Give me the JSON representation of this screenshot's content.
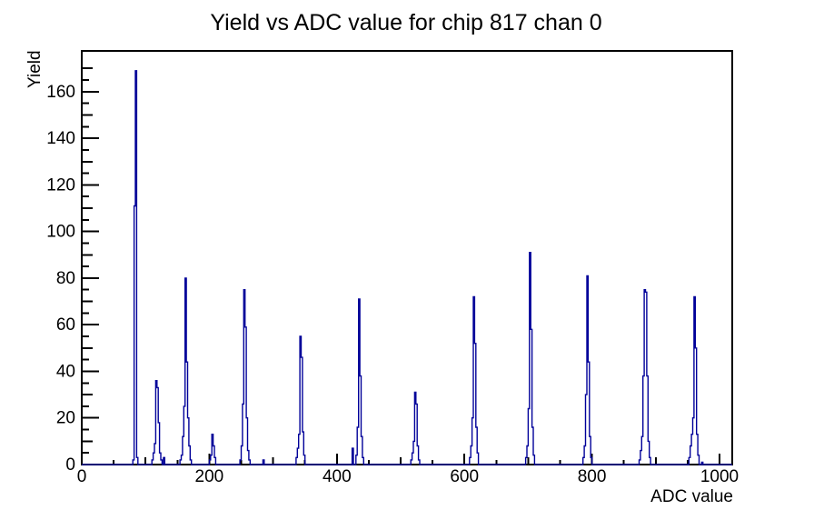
{
  "chart_data": {
    "type": "line",
    "subtype": "step-histogram",
    "title": "Yield vs ADC value for chip 817 chan 0",
    "xlabel": "ADC value",
    "ylabel": "Yield",
    "xlim": [
      0,
      1020
    ],
    "ylim": [
      0,
      177.5
    ],
    "grid": false,
    "legend": "none",
    "line_color": "#000099",
    "x_tick_labels": [
      "0",
      "200",
      "400",
      "600",
      "800",
      "1000"
    ],
    "x_major_tick_values": [
      0,
      200,
      400,
      600,
      800,
      1000
    ],
    "x_minor_step": 50,
    "y_tick_labels": [
      "0",
      "20",
      "40",
      "60",
      "80",
      "100",
      "120",
      "140",
      "160"
    ],
    "y_major_tick_values": [
      0,
      20,
      40,
      60,
      80,
      100,
      120,
      140,
      160
    ],
    "y_minor_step": 5,
    "bin_width": 2,
    "bins": [
      {
        "x": 80,
        "h": [
          2,
          111,
          169,
          3
        ]
      },
      {
        "x": 110,
        "h": [
          2,
          5,
          9,
          36,
          33,
          18,
          5,
          2
        ]
      },
      {
        "x": 128,
        "h": [
          3
        ]
      },
      {
        "x": 154,
        "h": [
          2,
          4,
          12,
          25,
          80,
          44,
          20,
          8,
          2
        ]
      },
      {
        "x": 200,
        "h": [
          2,
          4,
          13,
          8,
          3
        ]
      },
      {
        "x": 248,
        "h": [
          2,
          8,
          26,
          75,
          59,
          20,
          6,
          2
        ]
      },
      {
        "x": 284,
        "h": [
          2
        ]
      },
      {
        "x": 336,
        "h": [
          3,
          7,
          13,
          55,
          46,
          14,
          4
        ]
      },
      {
        "x": 424,
        "h": [
          7
        ]
      },
      {
        "x": 430,
        "h": [
          4,
          16,
          71,
          38,
          12,
          3
        ]
      },
      {
        "x": 516,
        "h": [
          2,
          5,
          10,
          31,
          26,
          8,
          2
        ]
      },
      {
        "x": 608,
        "h": [
          3,
          8,
          20,
          72,
          52,
          16,
          5
        ]
      },
      {
        "x": 696,
        "h": [
          3,
          8,
          24,
          91,
          58,
          16,
          4
        ]
      },
      {
        "x": 786,
        "h": [
          3,
          8,
          30,
          81,
          44,
          12,
          3
        ]
      },
      {
        "x": 874,
        "h": [
          2,
          6,
          12,
          38,
          75,
          74,
          38,
          10,
          3
        ]
      },
      {
        "x": 952,
        "h": [
          3,
          8,
          13,
          20,
          72,
          50,
          13,
          4
        ]
      },
      {
        "x": 972,
        "h": [
          1
        ]
      }
    ],
    "peak_summary": [
      {
        "adc": 85,
        "yield": 169
      },
      {
        "adc": 117,
        "yield": 36
      },
      {
        "adc": 162,
        "yield": 80
      },
      {
        "adc": 204,
        "yield": 13
      },
      {
        "adc": 254,
        "yield": 75
      },
      {
        "adc": 343,
        "yield": 55
      },
      {
        "adc": 434,
        "yield": 71
      },
      {
        "adc": 523,
        "yield": 31
      },
      {
        "adc": 615,
        "yield": 72
      },
      {
        "adc": 702,
        "yield": 91
      },
      {
        "adc": 792,
        "yield": 81
      },
      {
        "adc": 882,
        "yield": 75
      },
      {
        "adc": 961,
        "yield": 72
      }
    ]
  }
}
